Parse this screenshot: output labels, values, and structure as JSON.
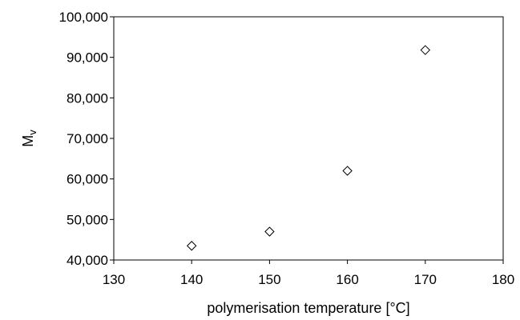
{
  "chart_data": {
    "type": "scatter",
    "title": "",
    "xlabel": "polymerisation temperature [°C]",
    "ylabel": "M",
    "ylabel_subscript": "v",
    "xlim": [
      130,
      180
    ],
    "ylim": [
      40000,
      100000
    ],
    "x_ticks": [
      130,
      140,
      150,
      160,
      170,
      180
    ],
    "y_ticks": [
      40000,
      50000,
      60000,
      70000,
      80000,
      90000,
      100000
    ],
    "x_tick_labels": [
      "130",
      "140",
      "150",
      "160",
      "170",
      "180"
    ],
    "y_tick_labels": [
      "40,000",
      "50,000",
      "60,000",
      "70,000",
      "80,000",
      "90,000",
      "100,000"
    ],
    "grid": false,
    "legend": "none",
    "marker": "open-diamond",
    "colors": {
      "marker": "#000000",
      "axis": "#000000"
    },
    "series": [
      {
        "points": [
          {
            "x": 140,
            "y": 43500
          },
          {
            "x": 150,
            "y": 47000
          },
          {
            "x": 160,
            "y": 62000
          },
          {
            "x": 170,
            "y": 91800
          }
        ]
      }
    ]
  }
}
